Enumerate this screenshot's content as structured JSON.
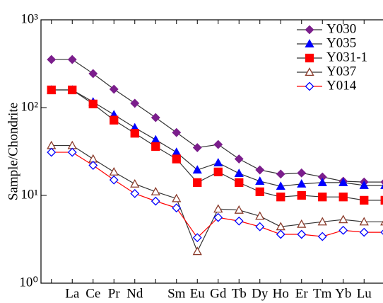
{
  "chart_data": {
    "type": "line",
    "ylabel": "Sample/Chondrite",
    "log_y": true,
    "ylim": [
      1,
      1000
    ],
    "yticks": [
      {
        "value": 1,
        "label": "10⁰"
      },
      {
        "value": 10,
        "label": "10¹"
      },
      {
        "value": 100,
        "label": "10²"
      },
      {
        "value": 1000,
        "label": "10³"
      }
    ],
    "legend": "upper right",
    "categories": [
      null,
      "La",
      "Ce",
      "Pr",
      "Nd",
      null,
      "Sm",
      "Eu",
      "Gd",
      "Tb",
      "Dy",
      "Ho",
      "Er",
      "Tm",
      "Yb",
      "Lu",
      null
    ],
    "series": [
      {
        "name": "Y030",
        "color": "#7b1e8c",
        "line_color": "#333333",
        "marker": "diamond",
        "filled": true,
        "values": [
          353,
          353,
          244,
          162,
          112,
          77,
          52,
          35,
          38,
          26,
          19.5,
          17.5,
          18,
          16.2,
          14.5,
          14.2,
          14.2
        ]
      },
      {
        "name": "Y035",
        "color": "#0000ff",
        "line_color": "#333333",
        "marker": "triangle",
        "filled": true,
        "values": [
          159,
          159,
          116,
          83,
          59,
          43,
          31,
          19.5,
          23.5,
          17.8,
          14.5,
          12.7,
          13.5,
          14,
          14,
          13,
          13
        ]
      },
      {
        "name": "Y031-1",
        "color": "#ff0000",
        "line_color": "#333333",
        "marker": "square",
        "filled": true,
        "values": [
          159,
          159,
          110,
          72,
          51,
          36,
          26,
          14,
          18.5,
          14,
          11,
          9.6,
          10,
          9.6,
          9.6,
          8.8,
          8.8
        ]
      },
      {
        "name": "Y037",
        "color": "#8b3a2a",
        "line_color": "#333333",
        "marker": "triangle",
        "filled": false,
        "values": [
          37,
          37,
          26,
          18.5,
          13.5,
          11,
          9.2,
          2.3,
          7,
          6.8,
          5.8,
          4.4,
          4.7,
          5,
          5.3,
          5,
          5
        ]
      },
      {
        "name": "Y014",
        "color": "#0000ff",
        "line_color": "#ff0000",
        "marker": "diamond",
        "filled": false,
        "values": [
          31,
          31,
          22,
          15,
          10.5,
          8.6,
          7.2,
          3.3,
          5.6,
          5.1,
          4.4,
          3.6,
          3.6,
          3.4,
          4,
          3.8,
          3.8
        ]
      }
    ]
  }
}
